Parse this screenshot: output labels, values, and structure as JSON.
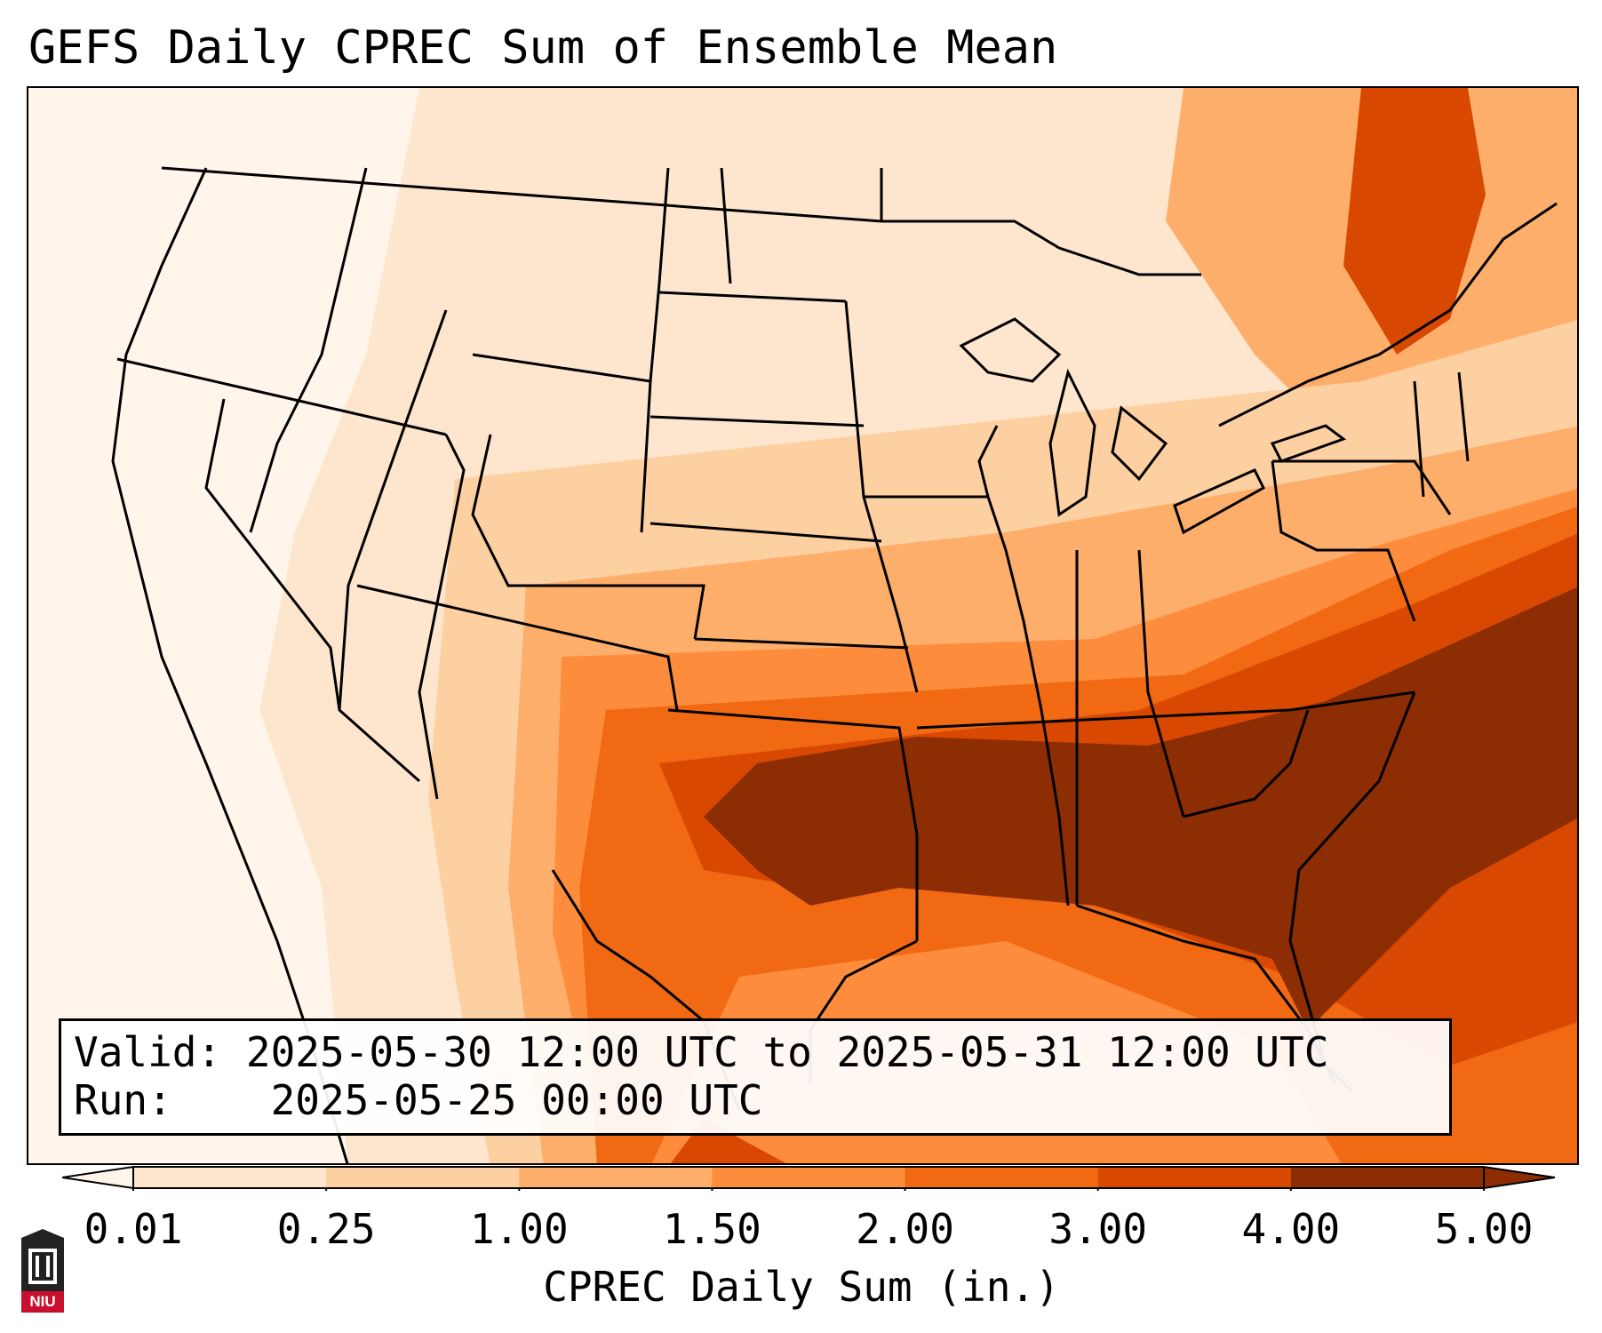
{
  "title": "GEFS Daily CPREC Sum of Ensemble Mean",
  "info": {
    "valid_label": "Valid:",
    "valid_value": "2025-05-30 12:00 UTC to 2025-05-31 12:00 UTC",
    "run_label": "Run:",
    "run_value": "2025-05-25 00:00 UTC"
  },
  "colorbar": {
    "label": "CPREC Daily Sum (in.)",
    "ticks": [
      "0.01",
      "0.25",
      "1.00",
      "1.50",
      "2.00",
      "3.00",
      "4.00",
      "5.00"
    ],
    "colors": [
      "#fff5eb",
      "#fee6ce",
      "#fdd0a2",
      "#fdae6b",
      "#fd8d3c",
      "#f16913",
      "#d94801",
      "#8c2d04"
    ],
    "extend": "both"
  },
  "logo": {
    "text": "NIU"
  },
  "colors": {
    "lightest": "#fff5eb",
    "light": "#fee6ce",
    "light_mid": "#fdd0a2",
    "mid": "#fdae6b",
    "mid_dark": "#fd8d3c",
    "dark": "#f16913",
    "darker": "#d94801",
    "darkest": "#8c2d04"
  }
}
